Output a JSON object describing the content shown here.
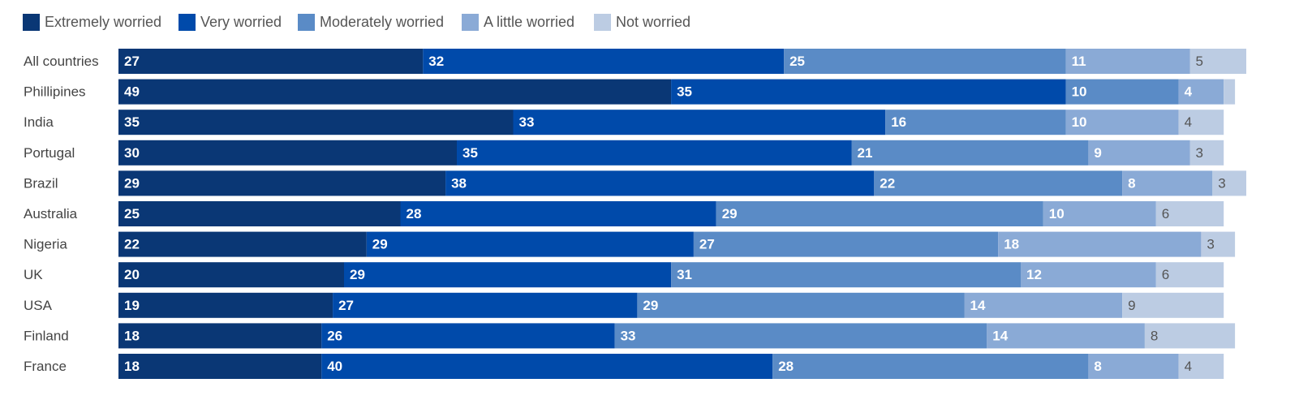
{
  "chart_data": {
    "type": "bar",
    "orientation": "horizontal",
    "stacked": true,
    "categories": [
      "All countries",
      "Phillipines",
      "India",
      "Portugal",
      "Brazil",
      "Australia",
      "Nigeria",
      "UK",
      "USA",
      "Finland",
      "France"
    ],
    "series": [
      {
        "name": "Extremely worried",
        "color": "#0a3775",
        "values": [
          27,
          49,
          35,
          30,
          29,
          25,
          22,
          20,
          19,
          18,
          18
        ]
      },
      {
        "name": "Very worried",
        "color": "#004aaa",
        "values": [
          32,
          35,
          33,
          35,
          38,
          28,
          29,
          29,
          27,
          26,
          40
        ]
      },
      {
        "name": "Moderately worried",
        "color": "#5a8bc6",
        "values": [
          25,
          10,
          16,
          21,
          22,
          29,
          27,
          31,
          29,
          33,
          28
        ]
      },
      {
        "name": "A little worried",
        "color": "#8aaad6",
        "values": [
          11,
          4,
          10,
          9,
          8,
          10,
          18,
          12,
          14,
          14,
          8
        ]
      },
      {
        "name": "Not worried",
        "color": "#bccce3",
        "values": [
          5,
          1,
          4,
          3,
          3,
          6,
          3,
          6,
          9,
          8,
          4
        ]
      }
    ],
    "value_labels": [
      [
        "27",
        "32",
        "25",
        "11",
        "5"
      ],
      [
        "49",
        "35",
        "10",
        "4",
        ""
      ],
      [
        "35",
        "33",
        "16",
        "10",
        "4"
      ],
      [
        "30",
        "35",
        "21",
        "9",
        "3"
      ],
      [
        "29",
        "38",
        "22",
        "8",
        "3"
      ],
      [
        "25",
        "28",
        "29",
        "10",
        "6"
      ],
      [
        "22",
        "29",
        "27",
        "18",
        "3"
      ],
      [
        "20",
        "29",
        "31",
        "12",
        "6"
      ],
      [
        "19",
        "27",
        "29",
        "14",
        "9"
      ],
      [
        "18",
        "26",
        "33",
        "14",
        "8"
      ],
      [
        "18",
        "40",
        "28",
        "8",
        "4"
      ]
    ],
    "label_colors": [
      "#ffffff",
      "#ffffff",
      "#ffffff",
      "#ffffff",
      "#555555"
    ],
    "xlim": [
      0,
      100
    ],
    "legend_position": "top-left",
    "grid": false
  }
}
